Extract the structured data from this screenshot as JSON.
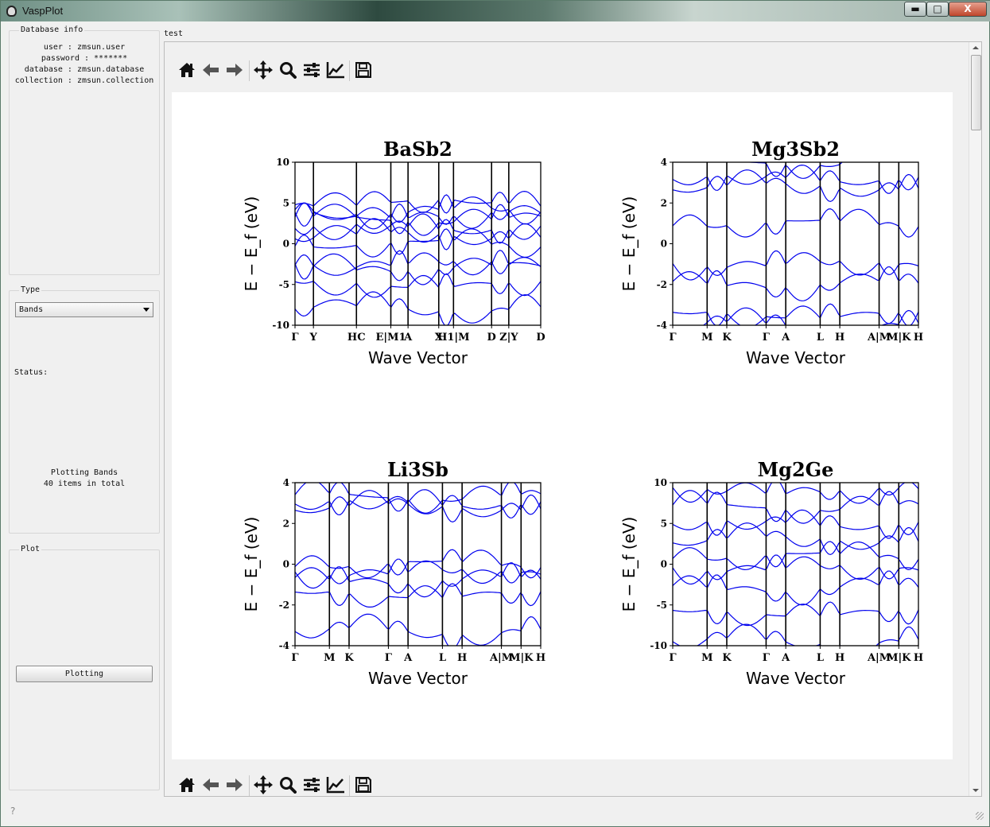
{
  "window": {
    "title": "VaspPlot",
    "min_label": "▬",
    "max_label": "□",
    "close_label": "X"
  },
  "database": {
    "title": "Database info",
    "lines": [
      "user : zmsun.user",
      "password : *******",
      "database : zmsun.database",
      "collection : zmsun.collection"
    ]
  },
  "type": {
    "title": "Type",
    "selected": "Bands",
    "status_label": "Status:",
    "status_line1": "Plotting Bands",
    "status_line2": "40 items in total"
  },
  "plot": {
    "title": "Plot",
    "button_label": "Plotting"
  },
  "tab": {
    "label": "test"
  },
  "toolbar": {
    "icons": [
      "home-icon",
      "back-icon",
      "forward-icon",
      "pan-icon",
      "zoom-icon",
      "configure-subplots-icon",
      "edit-axis-icon",
      "save-icon"
    ]
  },
  "colors": {
    "band_line": "#0000ee",
    "axis": "#000000",
    "figure_bg": "#ffffff",
    "window_bg": "#f0f0f0"
  },
  "chart_data": [
    {
      "type": "line",
      "title": "BaSb2",
      "xlabel": "Wave Vector",
      "ylabel": "E − E_f (eV)",
      "ylim": [
        -10,
        10
      ],
      "yticks": [
        -10,
        -5,
        0,
        5,
        10
      ],
      "kpoint_labels": [
        "Γ",
        "Y",
        "HC",
        "E|M1",
        "A",
        "X",
        "H1|M",
        "D",
        "Z|Y",
        "D"
      ],
      "kpoint_x": [
        0,
        0.075,
        0.25,
        0.39,
        0.46,
        0.585,
        0.645,
        0.8,
        0.87,
        1.0
      ],
      "band_energies_at_gamma": [
        -8,
        -5,
        -3,
        -2.5,
        0,
        1,
        2,
        3,
        3.5,
        4,
        5
      ],
      "line_color": "#0000ee"
    },
    {
      "type": "line",
      "title": "Mg3Sb2",
      "xlabel": "Wave Vector",
      "ylabel": "E − E_f (eV)",
      "ylim": [
        -4,
        4
      ],
      "yticks": [
        -4,
        -2,
        0,
        2,
        4
      ],
      "kpoint_labels": [
        "Γ",
        "M",
        "K",
        "Γ",
        "A",
        "L",
        "H",
        "A|M",
        "M|K",
        "H"
      ],
      "kpoint_x": [
        0,
        0.14,
        0.22,
        0.38,
        0.46,
        0.6,
        0.68,
        0.84,
        0.92,
        1.0
      ],
      "band_energies_at_gamma": [
        -4,
        -3.5,
        -2,
        -1,
        1,
        2.8,
        3.2,
        4
      ],
      "line_color": "#0000ee"
    },
    {
      "type": "line",
      "title": "Li3Sb",
      "xlabel": "Wave Vector",
      "ylabel": "E − E_f (eV)",
      "ylim": [
        -4,
        4
      ],
      "yticks": [
        -4,
        -2,
        0,
        2,
        4
      ],
      "kpoint_labels": [
        "Γ",
        "M",
        "K",
        "Γ",
        "A",
        "L",
        "H",
        "A|M",
        "M|K",
        "H"
      ],
      "kpoint_x": [
        0,
        0.14,
        0.22,
        0.38,
        0.46,
        0.6,
        0.68,
        0.84,
        0.92,
        1.0
      ],
      "band_energies_at_gamma": [
        -3.3,
        -1.5,
        -0.8,
        -0.4,
        0,
        2.8,
        3,
        3.3
      ],
      "line_color": "#0000ee"
    },
    {
      "type": "line",
      "title": "Mg2Ge",
      "xlabel": "Wave Vector",
      "ylabel": "E − E_f (eV)",
      "ylim": [
        -10,
        10
      ],
      "yticks": [
        -10,
        -5,
        0,
        5,
        10
      ],
      "kpoint_labels": [
        "Γ",
        "M",
        "K",
        "Γ",
        "A",
        "L",
        "H",
        "A|M",
        "M|K",
        "H"
      ],
      "kpoint_x": [
        0,
        0.14,
        0.22,
        0.38,
        0.46,
        0.6,
        0.68,
        0.84,
        0.92,
        1.0
      ],
      "band_energies_at_gamma": [
        -9.5,
        -6,
        -3,
        -0.5,
        1,
        3,
        5,
        7,
        9
      ],
      "line_color": "#0000ee"
    }
  ]
}
